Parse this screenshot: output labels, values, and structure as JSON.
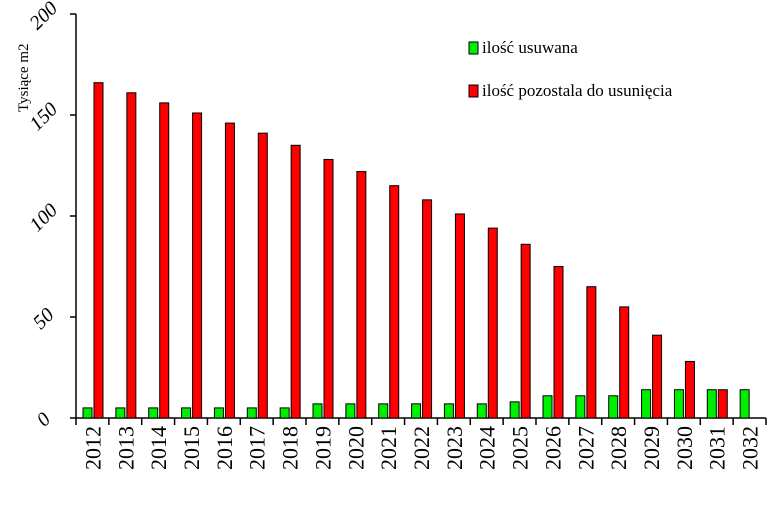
{
  "chart_data": {
    "type": "bar",
    "title": "",
    "xlabel": "",
    "ylabel": "Tysiące m2",
    "ylim": [
      0,
      200
    ],
    "yticks": [
      0,
      50,
      100,
      150,
      200
    ],
    "grid": false,
    "legend_position": "top-right",
    "categories": [
      "2012",
      "2013",
      "2014",
      "2015",
      "2016",
      "2017",
      "2018",
      "2019",
      "2020",
      "2021",
      "2022",
      "2023",
      "2024",
      "2025",
      "2026",
      "2027",
      "2028",
      "2029",
      "2030",
      "2031",
      "2032"
    ],
    "series": [
      {
        "name": "ilość usuwana",
        "color": "#00ee00",
        "values": [
          5,
          5,
          5,
          5,
          5,
          5,
          5,
          7,
          7,
          7,
          7,
          7,
          7,
          8,
          11,
          11,
          11,
          14,
          14,
          14,
          14
        ]
      },
      {
        "name": "ilość pozostala do usunięcia",
        "color": "#ff0000",
        "values": [
          166,
          161,
          156,
          151,
          146,
          141,
          135,
          128,
          122,
          115,
          108,
          101,
          94,
          86,
          75,
          65,
          55,
          41,
          28,
          14,
          0
        ]
      }
    ]
  }
}
